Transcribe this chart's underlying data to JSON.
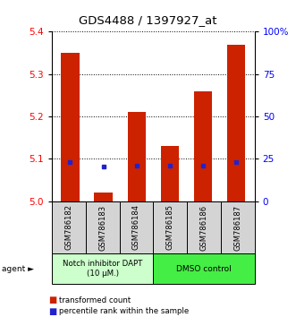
{
  "title": "GDS4488 / 1397927_at",
  "samples": [
    "GSM786182",
    "GSM786183",
    "GSM786184",
    "GSM786185",
    "GSM786186",
    "GSM786187"
  ],
  "bar_values": [
    5.35,
    5.02,
    5.21,
    5.13,
    5.26,
    5.37
  ],
  "bar_base": 5.0,
  "percentile_values": [
    5.093,
    5.082,
    5.085,
    5.084,
    5.085,
    5.092
  ],
  "ylim": [
    5.0,
    5.4
  ],
  "yticks_left": [
    5.0,
    5.1,
    5.2,
    5.3,
    5.4
  ],
  "yticks_right_labels": [
    "0",
    "25",
    "50",
    "75",
    "100%"
  ],
  "bar_color": "#cc2200",
  "percentile_color": "#2222cc",
  "group1_label": "Notch inhibitor DAPT\n(10 μM.)",
  "group2_label": "DMSO control",
  "group1_color": "#ccffcc",
  "group2_color": "#44ee44",
  "legend_tc": "transformed count",
  "legend_pr": "percentile rank within the sample"
}
